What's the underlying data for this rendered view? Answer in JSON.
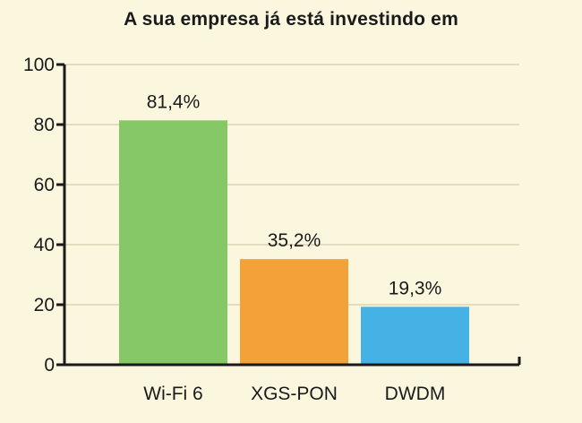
{
  "chart_data": {
    "type": "bar",
    "title": "A sua empresa já está investindo em",
    "categories": [
      "Wi-Fi 6",
      "XGS-PON",
      "DWDM"
    ],
    "values": [
      81.4,
      35.2,
      19.3
    ],
    "data_labels": [
      "81,4%",
      "35,2%",
      "19,3%"
    ],
    "colors": [
      "#86c767",
      "#f3a23a",
      "#45b2e6"
    ],
    "xlabel": "",
    "ylabel": "",
    "ylim": [
      0,
      100
    ],
    "yticks": [
      0,
      20,
      40,
      60,
      80,
      100
    ],
    "grid": true,
    "legend": "none"
  },
  "style": {
    "background": "#fbf7df",
    "grid_color": "#e3dcbf",
    "axis_color": "#1a1a1a"
  }
}
